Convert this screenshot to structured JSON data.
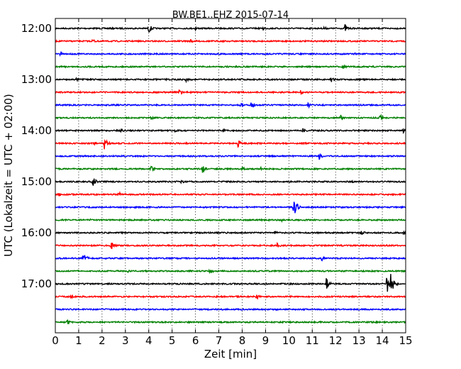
{
  "chart_data": {
    "type": "line",
    "subtype": "helicorder",
    "title": "BW.BE1..EHZ 2015-07-14",
    "xlabel": "Zeit  [min]",
    "ylabel": "UTC (Lokalzeit = UTC + 02:00)",
    "xlim": [
      0,
      15
    ],
    "x_ticks": [
      "0",
      "1",
      "2",
      "3",
      "4",
      "5",
      "6",
      "7",
      "8",
      "9",
      "10",
      "11",
      "12",
      "13",
      "14",
      "15"
    ],
    "y_ticks": [
      "12:00",
      "13:00",
      "14:00",
      "15:00",
      "16:00",
      "17:00"
    ],
    "grid": "vertical dotted lines at each minute",
    "line_colors": [
      "#000000",
      "#ff0000",
      "#0000ff",
      "#008000"
    ],
    "traces": [
      {
        "start": "12:00",
        "events": [
          {
            "min": 4.0,
            "amp": 7
          },
          {
            "min": 6.0,
            "amp": 3
          },
          {
            "min": 8.9,
            "amp": 3
          },
          {
            "min": 11.5,
            "amp": 3
          },
          {
            "min": 12.4,
            "amp": 6
          },
          {
            "min": 13.3,
            "amp": 2
          }
        ]
      },
      {
        "start": "12:15",
        "events": [
          {
            "min": 1.6,
            "amp": 4
          },
          {
            "min": 5.8,
            "amp": 3
          }
        ]
      },
      {
        "start": "12:30",
        "events": [
          {
            "min": 0.2,
            "amp": 3
          },
          {
            "min": 7.0,
            "amp": 3
          },
          {
            "min": 12.8,
            "amp": 2
          }
        ]
      },
      {
        "start": "12:45",
        "events": [
          {
            "min": 12.3,
            "amp": 4
          }
        ]
      },
      {
        "start": "13:00",
        "events": [
          {
            "min": 0.9,
            "amp": 3
          },
          {
            "min": 5.6,
            "amp": 3
          },
          {
            "min": 7.9,
            "amp": 3
          },
          {
            "min": 11.8,
            "amp": 5
          }
        ]
      },
      {
        "start": "13:15",
        "events": [
          {
            "min": 5.3,
            "amp": 6
          },
          {
            "min": 10.5,
            "amp": 3
          }
        ]
      },
      {
        "start": "13:30",
        "events": [
          {
            "min": 7.9,
            "amp": 4
          },
          {
            "min": 8.4,
            "amp": 7
          },
          {
            "min": 10.8,
            "amp": 5
          }
        ]
      },
      {
        "start": "13:45",
        "events": [
          {
            "min": 4.1,
            "amp": 4
          },
          {
            "min": 12.2,
            "amp": 5
          },
          {
            "min": 13.9,
            "amp": 6
          }
        ]
      },
      {
        "start": "14:00",
        "events": [
          {
            "min": 2.8,
            "amp": 3
          },
          {
            "min": 5.1,
            "amp": 3
          },
          {
            "min": 7.2,
            "amp": 2
          },
          {
            "min": 10.6,
            "amp": 5
          },
          {
            "min": 14.9,
            "amp": 3
          }
        ]
      },
      {
        "start": "14:15",
        "events": [
          {
            "min": 1.7,
            "amp": 3
          },
          {
            "min": 2.1,
            "amp": 9
          },
          {
            "min": 7.8,
            "amp": 6
          }
        ]
      },
      {
        "start": "14:30",
        "events": [
          {
            "min": 11.3,
            "amp": 5
          }
        ]
      },
      {
        "start": "14:45",
        "events": [
          {
            "min": 4.1,
            "amp": 6
          },
          {
            "min": 6.3,
            "amp": 8
          },
          {
            "min": 8.0,
            "amp": 3
          },
          {
            "min": 8.8,
            "amp": 3
          }
        ]
      },
      {
        "start": "15:00",
        "events": [
          {
            "min": 1.6,
            "amp": 8
          },
          {
            "min": 5.4,
            "amp": 3
          },
          {
            "min": 12.7,
            "amp": 2
          }
        ]
      },
      {
        "start": "15:15",
        "events": [
          {
            "min": 0.1,
            "amp": 4
          },
          {
            "min": 2.7,
            "amp": 4
          }
        ]
      },
      {
        "start": "15:30",
        "events": [
          {
            "min": 10.2,
            "amp": 18
          }
        ]
      },
      {
        "start": "15:45",
        "events": [
          {
            "min": 1.5,
            "amp": 2
          },
          {
            "min": 9.7,
            "amp": 2
          }
        ]
      },
      {
        "start": "16:00",
        "events": [
          {
            "min": 7.3,
            "amp": 2
          },
          {
            "min": 9.4,
            "amp": 3
          },
          {
            "min": 13.1,
            "amp": 4
          },
          {
            "min": 14.9,
            "amp": 3
          }
        ]
      },
      {
        "start": "16:15",
        "events": [
          {
            "min": 2.4,
            "amp": 6
          },
          {
            "min": 9.5,
            "amp": 4
          }
        ]
      },
      {
        "start": "16:30",
        "events": [
          {
            "min": 1.2,
            "amp": 11
          },
          {
            "min": 11.4,
            "amp": 4
          }
        ]
      },
      {
        "start": "16:45",
        "events": [
          {
            "min": 3.1,
            "amp": 2
          },
          {
            "min": 6.6,
            "amp": 6
          }
        ]
      },
      {
        "start": "17:00",
        "events": [
          {
            "min": 11.6,
            "amp": 9
          },
          {
            "min": 14.2,
            "amp": 14
          },
          {
            "min": 14.35,
            "amp": 22
          }
        ]
      },
      {
        "start": "17:15",
        "events": [
          {
            "min": 0.6,
            "amp": 4
          },
          {
            "min": 8.6,
            "amp": 5
          }
        ]
      },
      {
        "start": "17:30",
        "events": []
      },
      {
        "start": "17:45",
        "events": [
          {
            "min": 0.5,
            "amp": 4
          },
          {
            "min": 1.1,
            "amp": 2
          }
        ]
      }
    ]
  }
}
